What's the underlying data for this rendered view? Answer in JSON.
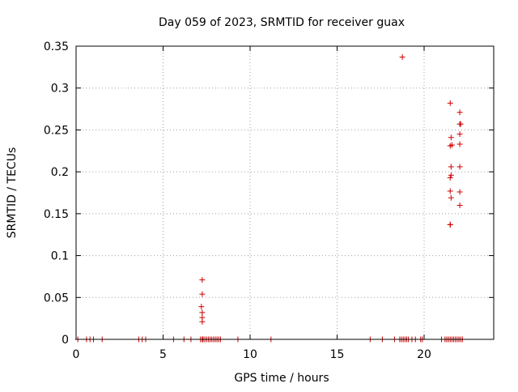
{
  "chart_data": {
    "type": "scatter",
    "title": "Day 059 of 2023, SRMTID for receiver guax",
    "xlabel": "GPS time / hours",
    "ylabel": "SRMTID / TECUs",
    "xlim": [
      0,
      24
    ],
    "ylim": [
      0,
      0.35
    ],
    "xticks": [
      0,
      5,
      10,
      15,
      20
    ],
    "xtick_labels": [
      "0",
      "5",
      "10",
      "15",
      "20"
    ],
    "yticks": [
      0,
      0.05,
      0.1,
      0.15,
      0.2,
      0.25,
      0.3,
      0.35
    ],
    "ytick_labels": [
      "0",
      "0.05",
      "0.1",
      "0.15",
      "0.2",
      "0.25",
      "0.3",
      "0.35"
    ],
    "grid": true,
    "legend": "none",
    "marker": "plus",
    "color": "#cc0000",
    "series": [
      {
        "x": [
          0.1,
          0.6,
          0.8,
          1.0,
          1.5,
          3.6,
          3.8,
          4.0,
          5.6,
          6.2,
          6.6,
          7.15,
          7.25,
          7.3,
          7.4,
          7.5,
          7.6,
          7.7,
          7.8,
          7.9,
          8.0,
          8.1,
          8.2,
          8.3,
          9.3,
          11.2,
          16.9,
          17.6,
          18.3,
          18.6,
          18.7,
          18.8,
          18.9,
          19.0,
          19.1,
          19.3,
          19.5,
          19.8,
          19.9,
          21.0,
          21.2,
          21.3,
          21.4,
          21.5,
          21.6,
          21.7,
          21.8,
          21.9,
          22.0,
          22.1,
          22.2,
          7.25,
          7.25,
          7.2,
          7.25,
          7.25,
          7.25,
          18.75,
          21.5,
          21.55,
          21.6,
          21.5,
          21.55,
          21.55,
          21.5,
          21.5,
          21.55,
          21.5,
          21.5,
          22.05,
          22.1,
          22.05,
          22.05,
          22.05,
          22.05,
          22.05,
          22.05
        ],
        "y": [
          0,
          0,
          0,
          0,
          0,
          0,
          0,
          0,
          0,
          0,
          0,
          0,
          0,
          0,
          0,
          0,
          0,
          0,
          0,
          0,
          0,
          0,
          0,
          0,
          0,
          0,
          0,
          0,
          0,
          0,
          0,
          0,
          0,
          0,
          0,
          0,
          0,
          0,
          0,
          0,
          0,
          0,
          0,
          0,
          0,
          0,
          0,
          0,
          0,
          0,
          0,
          0.071,
          0.054,
          0.039,
          0.032,
          0.026,
          0.021,
          0.337,
          0.282,
          0.241,
          0.232,
          0.231,
          0.206,
          0.196,
          0.193,
          0.177,
          0.169,
          0.137,
          0.137,
          0.271,
          0.257,
          0.257,
          0.245,
          0.233,
          0.206,
          0.176,
          0.16
        ]
      }
    ]
  }
}
